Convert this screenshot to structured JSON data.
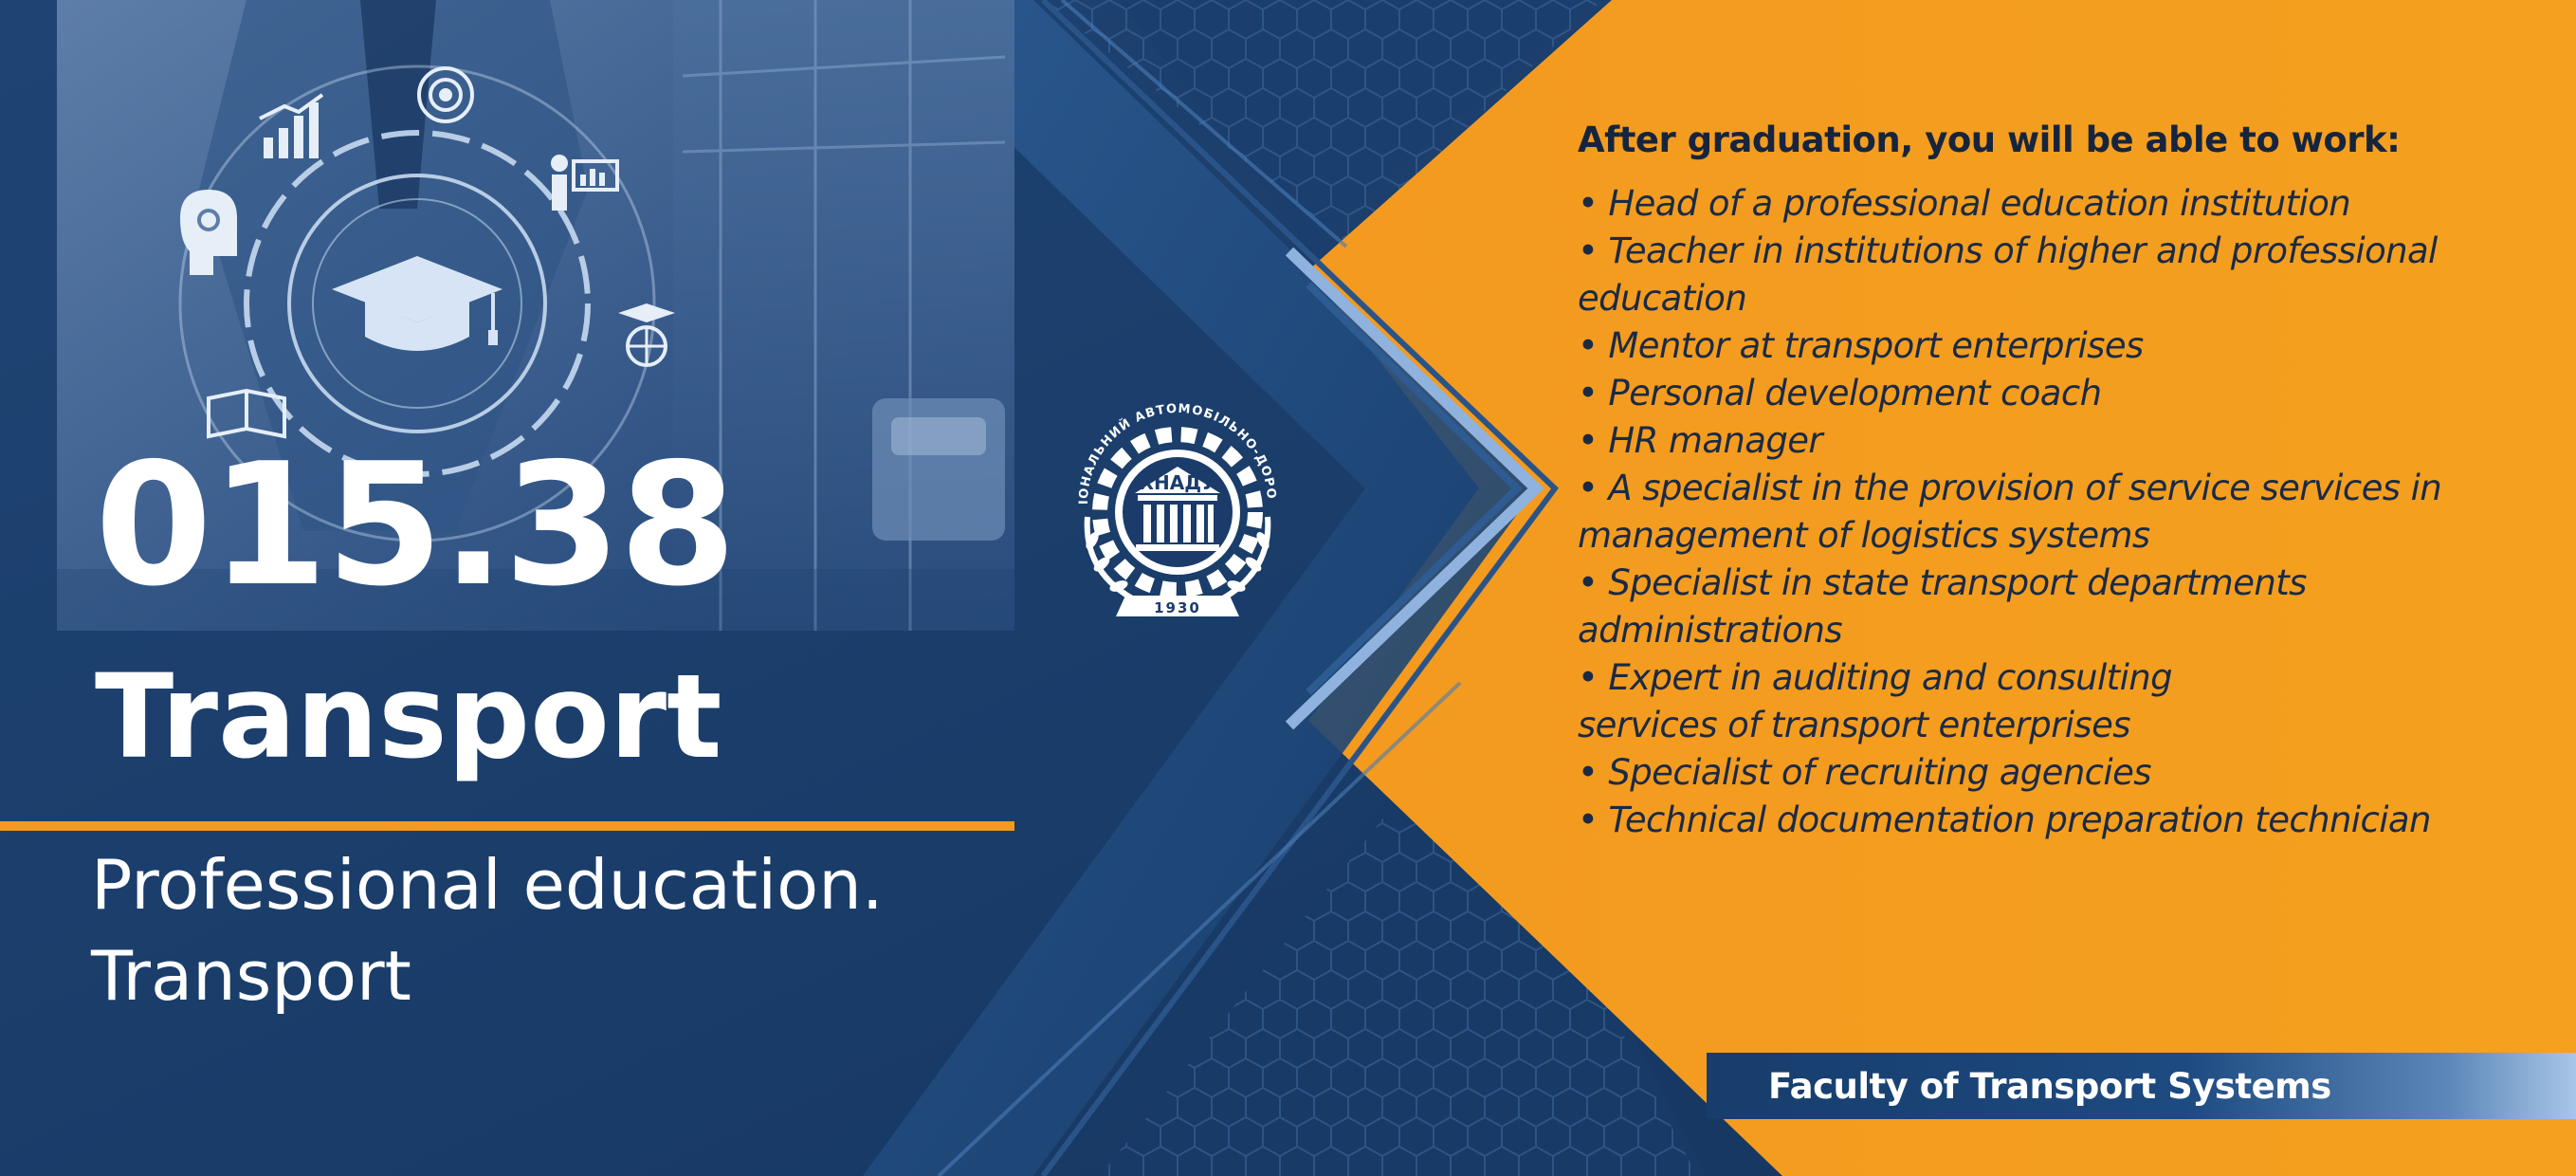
{
  "program": {
    "code": "015.38",
    "title": "Transport",
    "subtitle_lines": [
      "Professional education.",
      "Transport"
    ]
  },
  "careers": {
    "heading": "After graduation, you will be able to work:",
    "items": [
      [
        "• Head of a professional education institution"
      ],
      [
        "• Teacher in institutions of higher and professional",
        "education"
      ],
      [
        "• Mentor at transport enterprises"
      ],
      [
        "• Personal development coach"
      ],
      [
        "• HR manager"
      ],
      [
        "• A specialist in the provision of service services in",
        "management of logistics systems"
      ],
      [
        "• Specialist in state transport departments",
        "administrations"
      ],
      [
        "• Expert in auditing and consulting",
        "services of transport enterprises"
      ],
      [
        "• Specialist of recruiting agencies"
      ],
      [
        "• Technical documentation preparation technician"
      ]
    ]
  },
  "faculty": "Faculty of Transport Systems",
  "logo": {
    "ring_text": "ХАРКІВСЬКИЙ НАЦІОНАЛЬНИЙ АВТОМОБІЛЬНО-ДОРОЖНІЙ УНІВЕРСИТЕТ",
    "abbreviation": "ХНАДУ",
    "year": "1930"
  },
  "colors": {
    "navy": "#1b3c6b",
    "orange": "#f39a1f",
    "text_dark": "#1b2a44",
    "white": "#ffffff"
  },
  "icons": [
    "graduation-cap-icon",
    "bar-chart-icon",
    "target-icon",
    "presenter-icon",
    "brain-gears-icon",
    "book-icon",
    "globe-cap-icon"
  ]
}
